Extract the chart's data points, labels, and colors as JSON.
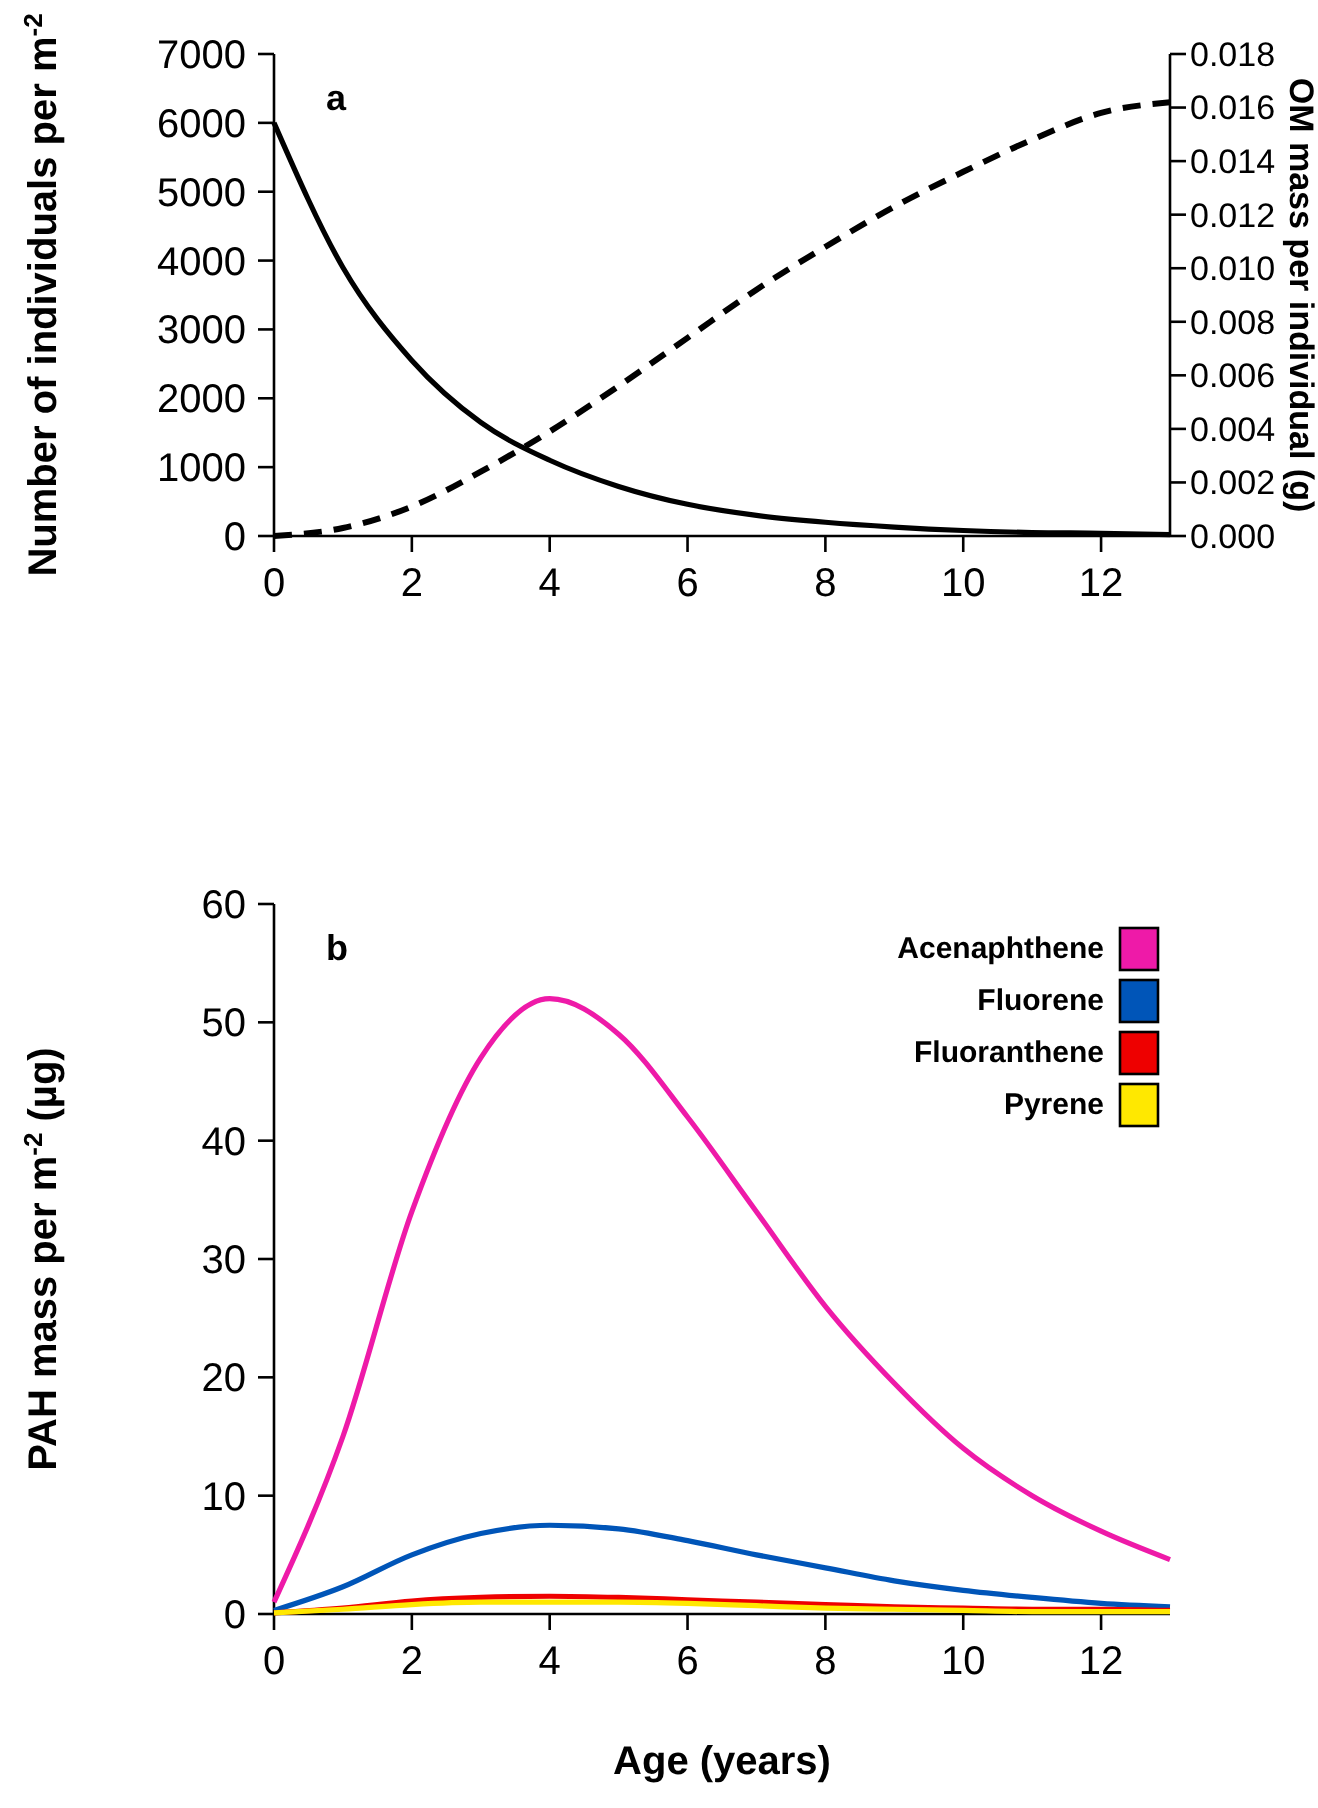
{
  "chart_data": [
    {
      "type": "line",
      "annotations": [
        "a"
      ],
      "x": [
        0,
        1,
        2,
        3,
        4,
        5,
        6,
        7,
        8,
        9,
        10,
        11,
        12,
        13
      ],
      "xlim": [
        0,
        13
      ],
      "xticks": [
        0,
        2,
        4,
        6,
        8,
        10,
        12
      ],
      "ylim": [
        0,
        7000
      ],
      "yticks": [
        0,
        1000,
        2000,
        3000,
        4000,
        5000,
        6000,
        7000
      ],
      "y2lim": [
        0,
        0.018
      ],
      "y2ticks": [
        {
          "value": 0,
          "label": "0.000"
        },
        {
          "value": 0.002,
          "label": "0.002"
        },
        {
          "value": 0.004,
          "label": "0.004"
        },
        {
          "value": 0.006,
          "label": "0.006"
        },
        {
          "value": 0.008,
          "label": "0.008"
        },
        {
          "value": 0.01,
          "label": "0.010"
        },
        {
          "value": 0.012,
          "label": "0.012"
        },
        {
          "value": 0.014,
          "label": "0.014"
        },
        {
          "value": 0.016,
          "label": "0.016"
        },
        {
          "value": 0.018,
          "label": "0.018"
        }
      ],
      "ylabel": "Number of individuals per m$^{-2}$",
      "y2label": "OM mass per individual (g)",
      "grid": false,
      "legend": false,
      "series": [
        {
          "color": "#000000",
          "line_style": "solid",
          "values": [
            6000,
            3900,
            2550,
            1650,
            1100,
            720,
            460,
            300,
            200,
            130,
            80,
            50,
            40,
            20
          ]
        },
        {
          "color": "#000000",
          "line_style": "dashed",
          "axis": "y2",
          "values": [
            0,
            0.0003,
            0.0011,
            0.0024,
            0.0039,
            0.0056,
            0.0074,
            0.0092,
            0.0108,
            0.0123,
            0.0136,
            0.0148,
            0.0158,
            0.0162
          ]
        }
      ]
    },
    {
      "type": "line",
      "annotations": [
        "b"
      ],
      "x": [
        0,
        1,
        2,
        3,
        4,
        5,
        6,
        7,
        8,
        9,
        10,
        11,
        12,
        13
      ],
      "xlim": [
        0,
        13
      ],
      "xticks": [
        0,
        2,
        4,
        6,
        8,
        10,
        12
      ],
      "ylim": [
        0,
        60
      ],
      "yticks": [
        0,
        10,
        20,
        30,
        40,
        50,
        60
      ],
      "xlabel": "Age (years)",
      "ylabel": "PAH mass per m$^{-2}$ (µg)",
      "grid": false,
      "legend": "top right",
      "series": [
        {
          "name": "Acenaphthene",
          "color": "#ee1aa8",
          "values": [
            1,
            15,
            34,
            47,
            52,
            49,
            42,
            34,
            26,
            19.5,
            14,
            10,
            7,
            4.6
          ]
        },
        {
          "name": "Fluorene",
          "color": "#0055b8",
          "values": [
            0.3,
            2.3,
            5,
            6.8,
            7.5,
            7.2,
            6.2,
            5,
            3.9,
            2.8,
            2,
            1.4,
            0.9,
            0.6
          ]
        },
        {
          "name": "Fluoranthene",
          "color": "#ee0000",
          "values": [
            0.1,
            0.5,
            1.1,
            1.4,
            1.5,
            1.4,
            1.2,
            1,
            0.8,
            0.6,
            0.5,
            0.4,
            0.4,
            0.3
          ]
        },
        {
          "name": "Pyrene",
          "color": "#ffe800",
          "values": [
            0.1,
            0.4,
            0.8,
            1,
            1,
            1,
            0.9,
            0.7,
            0.5,
            0.4,
            0.3,
            0.2,
            0.2,
            0.2
          ]
        }
      ]
    }
  ]
}
